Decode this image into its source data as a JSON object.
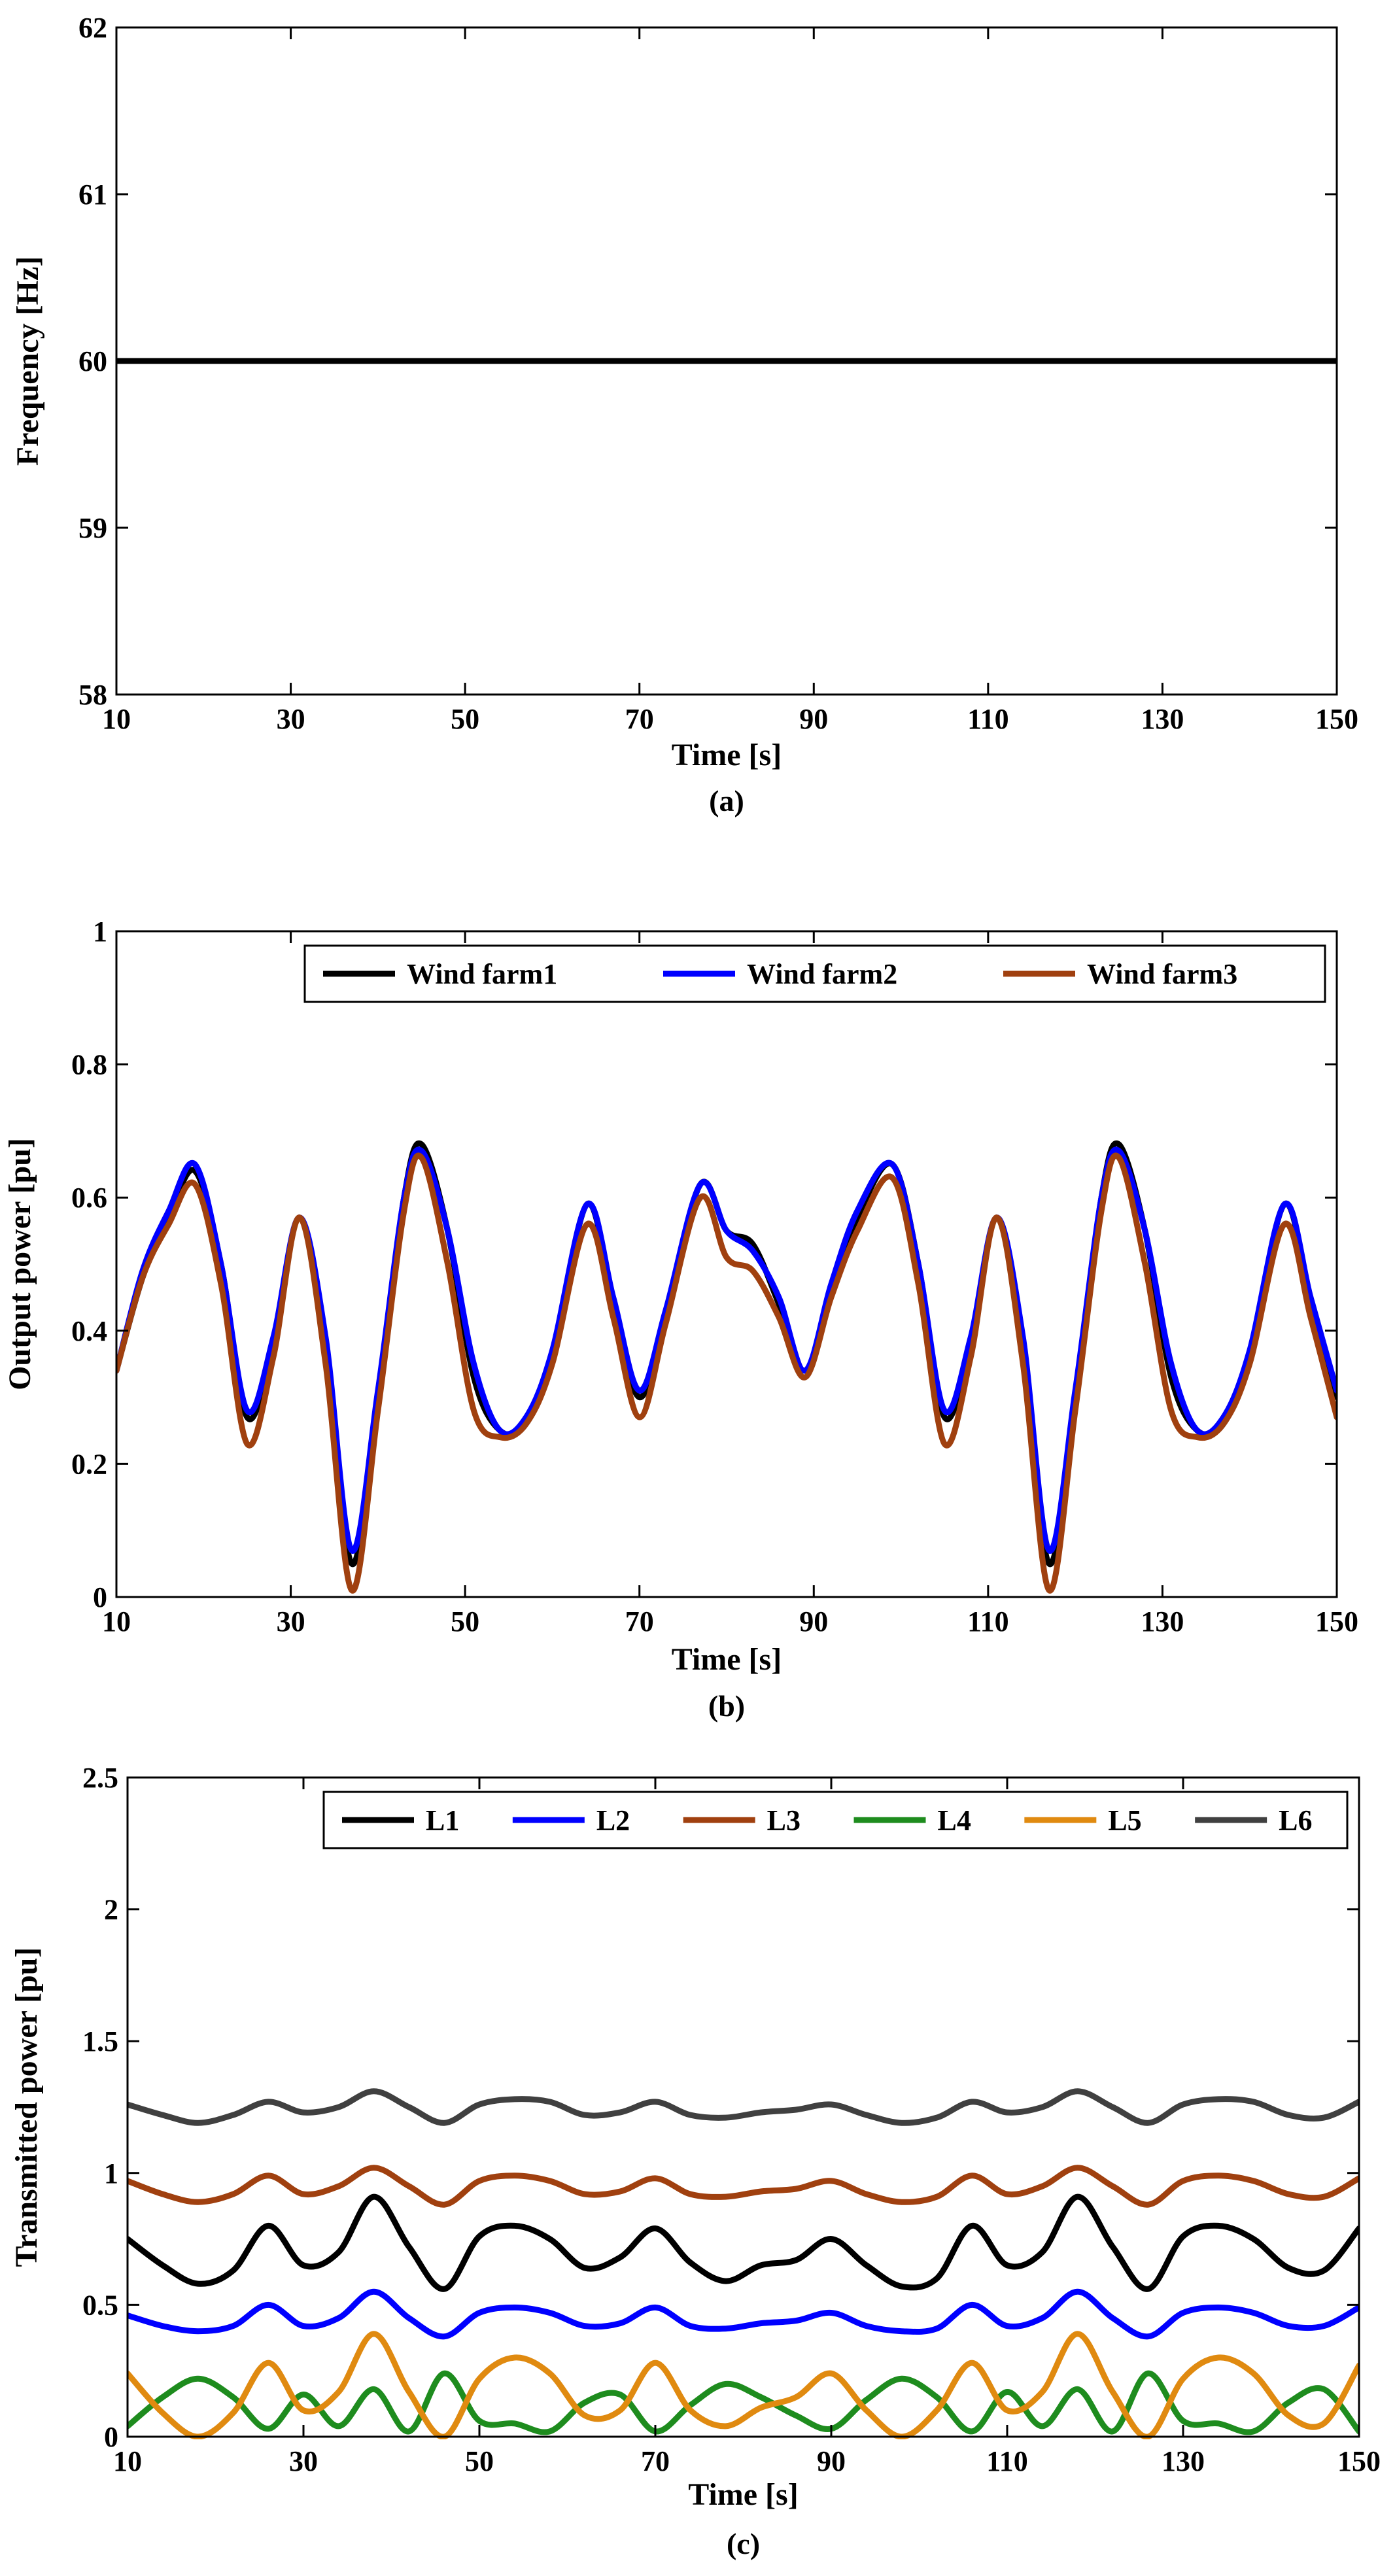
{
  "chart_data": [
    {
      "type": "line",
      "panel_label": "(a)",
      "xlabel": "Time [s]",
      "ylabel": "Frequency [Hz]",
      "xlim": [
        10,
        150
      ],
      "ylim": [
        58,
        62
      ],
      "xticks": [
        "10",
        "30",
        "50",
        "70",
        "90",
        "110",
        "130",
        "150"
      ],
      "yticks": [
        "58",
        "59",
        "60",
        "61",
        "62"
      ],
      "grid": false,
      "legend": null,
      "series": [
        {
          "color": "#000000",
          "x": [
            10,
            20,
            30,
            40,
            50,
            60,
            70,
            80,
            90,
            100,
            110,
            120,
            130,
            140,
            150
          ],
          "y": [
            60.0,
            60.0,
            60.0,
            60.0,
            60.0,
            60.0,
            60.0,
            60.0,
            60.0,
            60.0,
            60.0,
            60.0,
            60.0,
            60.0,
            60.0
          ]
        }
      ]
    },
    {
      "type": "line",
      "panel_label": "(b)",
      "xlabel": "Time [s]",
      "ylabel": "Output power [pu]",
      "xlim": [
        10,
        150
      ],
      "ylim": [
        0,
        1
      ],
      "xticks": [
        "10",
        "30",
        "50",
        "70",
        "90",
        "110",
        "130",
        "150"
      ],
      "yticks": [
        "0",
        "0.2",
        "0.4",
        "0.6",
        "0.8",
        "1"
      ],
      "grid": false,
      "legend": "top-right",
      "x": [
        10,
        13,
        16,
        19,
        22,
        25,
        28,
        31,
        34,
        37,
        40,
        43,
        45,
        48,
        51,
        54,
        57,
        60,
        64,
        67,
        70,
        73,
        77,
        80,
        83,
        86,
        89,
        92,
        95,
        99,
        102,
        105,
        108,
        111,
        114,
        117,
        120,
        123,
        125,
        128,
        131,
        134,
        137,
        140,
        144,
        147,
        150
      ],
      "series": [
        {
          "name": "Wind farm1",
          "color": "#000000",
          "y": [
            0.34,
            0.48,
            0.57,
            0.64,
            0.5,
            0.27,
            0.38,
            0.57,
            0.38,
            0.05,
            0.3,
            0.6,
            0.68,
            0.55,
            0.33,
            0.25,
            0.26,
            0.36,
            0.59,
            0.44,
            0.3,
            0.42,
            0.62,
            0.55,
            0.53,
            0.44,
            0.34,
            0.46,
            0.57,
            0.65,
            0.5,
            0.27,
            0.38,
            0.57,
            0.38,
            0.05,
            0.3,
            0.6,
            0.68,
            0.55,
            0.33,
            0.25,
            0.26,
            0.36,
            0.59,
            0.44,
            0.3
          ]
        },
        {
          "name": "Wind farm2",
          "color": "#0000ff",
          "y": [
            0.34,
            0.49,
            0.58,
            0.65,
            0.5,
            0.28,
            0.39,
            0.57,
            0.39,
            0.07,
            0.31,
            0.6,
            0.67,
            0.55,
            0.35,
            0.25,
            0.27,
            0.37,
            0.59,
            0.45,
            0.31,
            0.43,
            0.62,
            0.55,
            0.52,
            0.45,
            0.34,
            0.47,
            0.58,
            0.65,
            0.5,
            0.28,
            0.39,
            0.57,
            0.39,
            0.07,
            0.31,
            0.6,
            0.67,
            0.55,
            0.35,
            0.25,
            0.27,
            0.37,
            0.59,
            0.45,
            0.31
          ]
        },
        {
          "name": "Wind farm3",
          "color": "#a0400f",
          "y": [
            0.34,
            0.48,
            0.56,
            0.62,
            0.47,
            0.23,
            0.36,
            0.57,
            0.35,
            0.01,
            0.28,
            0.58,
            0.66,
            0.5,
            0.28,
            0.24,
            0.26,
            0.35,
            0.56,
            0.42,
            0.27,
            0.41,
            0.6,
            0.51,
            0.49,
            0.42,
            0.33,
            0.45,
            0.55,
            0.63,
            0.47,
            0.23,
            0.36,
            0.57,
            0.35,
            0.01,
            0.28,
            0.58,
            0.66,
            0.5,
            0.28,
            0.24,
            0.26,
            0.35,
            0.56,
            0.42,
            0.27
          ]
        }
      ]
    },
    {
      "type": "line",
      "panel_label": "(c)",
      "xlabel": "Time [s]",
      "ylabel": "Transmitted power [pu]",
      "xlim": [
        10,
        150
      ],
      "ylim": [
        0,
        2.5
      ],
      "xticks": [
        "10",
        "30",
        "50",
        "70",
        "90",
        "110",
        "130",
        "150"
      ],
      "yticks": [
        "0",
        "0.5",
        "1",
        "1.5",
        "2",
        "2.5"
      ],
      "grid": false,
      "legend": "top-right",
      "x": [
        10,
        14,
        18,
        22,
        26,
        30,
        34,
        38,
        42,
        46,
        50,
        54,
        58,
        62,
        66,
        70,
        74,
        78,
        82,
        86,
        90,
        94,
        98,
        102,
        106,
        110,
        114,
        118,
        122,
        126,
        130,
        134,
        138,
        142,
        146,
        150
      ],
      "series": [
        {
          "name": "L1",
          "color": "#000000",
          "y": [
            0.75,
            0.65,
            0.58,
            0.63,
            0.8,
            0.65,
            0.7,
            0.91,
            0.72,
            0.56,
            0.76,
            0.8,
            0.75,
            0.64,
            0.68,
            0.79,
            0.66,
            0.59,
            0.65,
            0.67,
            0.75,
            0.65,
            0.57,
            0.6,
            0.8,
            0.65,
            0.7,
            0.91,
            0.72,
            0.56,
            0.76,
            0.8,
            0.75,
            0.64,
            0.63,
            0.79
          ]
        },
        {
          "name": "L2",
          "color": "#0000ff",
          "y": [
            0.46,
            0.42,
            0.4,
            0.42,
            0.5,
            0.42,
            0.45,
            0.55,
            0.45,
            0.38,
            0.47,
            0.49,
            0.47,
            0.42,
            0.43,
            0.49,
            0.42,
            0.41,
            0.43,
            0.44,
            0.47,
            0.42,
            0.4,
            0.41,
            0.5,
            0.42,
            0.45,
            0.55,
            0.45,
            0.38,
            0.47,
            0.49,
            0.47,
            0.42,
            0.42,
            0.49
          ]
        },
        {
          "name": "L3",
          "color": "#a0400f",
          "y": [
            0.97,
            0.92,
            0.89,
            0.92,
            0.99,
            0.92,
            0.95,
            1.02,
            0.95,
            0.88,
            0.97,
            0.99,
            0.97,
            0.92,
            0.93,
            0.98,
            0.92,
            0.91,
            0.93,
            0.94,
            0.97,
            0.92,
            0.89,
            0.91,
            0.99,
            0.92,
            0.95,
            1.02,
            0.95,
            0.88,
            0.97,
            0.99,
            0.97,
            0.92,
            0.91,
            0.98
          ]
        },
        {
          "name": "L4",
          "color": "#1e8c1e",
          "y": [
            0.04,
            0.15,
            0.22,
            0.15,
            0.03,
            0.16,
            0.04,
            0.18,
            0.02,
            0.24,
            0.06,
            0.05,
            0.02,
            0.13,
            0.16,
            0.02,
            0.12,
            0.2,
            0.15,
            0.08,
            0.03,
            0.14,
            0.22,
            0.15,
            0.02,
            0.17,
            0.04,
            0.18,
            0.02,
            0.24,
            0.06,
            0.05,
            0.02,
            0.13,
            0.18,
            0.02
          ]
        },
        {
          "name": "L5",
          "color": "#e08a10",
          "y": [
            0.24,
            0.09,
            0.0,
            0.09,
            0.28,
            0.1,
            0.17,
            0.39,
            0.17,
            0.0,
            0.22,
            0.3,
            0.24,
            0.08,
            0.1,
            0.28,
            0.1,
            0.04,
            0.11,
            0.15,
            0.24,
            0.1,
            0.0,
            0.1,
            0.28,
            0.1,
            0.17,
            0.39,
            0.17,
            0.0,
            0.22,
            0.3,
            0.24,
            0.08,
            0.05,
            0.27
          ]
        },
        {
          "name": "L6",
          "color": "#404040",
          "y": [
            1.26,
            1.22,
            1.19,
            1.22,
            1.27,
            1.23,
            1.25,
            1.31,
            1.25,
            1.19,
            1.26,
            1.28,
            1.27,
            1.22,
            1.23,
            1.27,
            1.22,
            1.21,
            1.23,
            1.24,
            1.26,
            1.22,
            1.19,
            1.21,
            1.27,
            1.23,
            1.25,
            1.31,
            1.25,
            1.19,
            1.26,
            1.28,
            1.27,
            1.22,
            1.21,
            1.27
          ]
        }
      ]
    }
  ]
}
